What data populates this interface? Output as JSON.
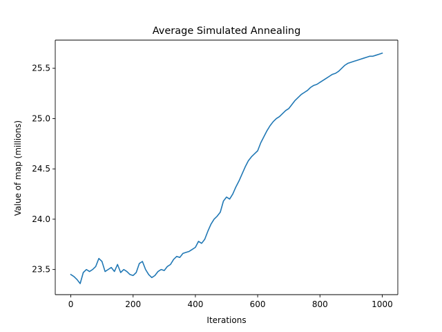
{
  "chart_data": {
    "type": "line",
    "title": "Average Simulated Annealing",
    "xlabel": "Iterations",
    "ylabel": "Value of map (millions)",
    "xlim": [
      -50,
      1050
    ],
    "ylim": [
      23.25,
      25.78
    ],
    "xticks": [
      0,
      200,
      400,
      600,
      800,
      1000
    ],
    "yticks": [
      23.5,
      24.0,
      24.5,
      25.0,
      25.5
    ],
    "xtick_labels": [
      "0",
      "200",
      "400",
      "600",
      "800",
      "1000"
    ],
    "ytick_labels": [
      "23.5",
      "24.0",
      "24.5",
      "25.0",
      "25.5"
    ],
    "grid": false,
    "legend": "none",
    "series": [
      {
        "color": "#1f77b4",
        "x": [
          0,
          10,
          20,
          30,
          40,
          50,
          60,
          70,
          80,
          90,
          100,
          110,
          120,
          130,
          140,
          150,
          160,
          170,
          180,
          190,
          200,
          210,
          220,
          230,
          240,
          250,
          260,
          270,
          280,
          290,
          300,
          310,
          320,
          330,
          340,
          350,
          360,
          370,
          380,
          390,
          400,
          410,
          420,
          430,
          440,
          450,
          460,
          470,
          480,
          490,
          500,
          510,
          520,
          530,
          540,
          550,
          560,
          570,
          580,
          590,
          600,
          610,
          620,
          630,
          640,
          650,
          660,
          670,
          680,
          690,
          700,
          710,
          720,
          730,
          740,
          750,
          760,
          770,
          780,
          790,
          800,
          810,
          820,
          830,
          840,
          850,
          860,
          870,
          880,
          890,
          900,
          910,
          920,
          930,
          940,
          950,
          960,
          970,
          980,
          990,
          1000
        ],
        "y": [
          23.45,
          23.43,
          23.4,
          23.36,
          23.47,
          23.5,
          23.48,
          23.5,
          23.53,
          23.61,
          23.58,
          23.48,
          23.5,
          23.52,
          23.48,
          23.55,
          23.47,
          23.5,
          23.48,
          23.45,
          23.44,
          23.47,
          23.56,
          23.58,
          23.5,
          23.45,
          23.42,
          23.44,
          23.48,
          23.5,
          23.49,
          23.53,
          23.55,
          23.6,
          23.63,
          23.62,
          23.66,
          23.67,
          23.68,
          23.7,
          23.72,
          23.78,
          23.76,
          23.8,
          23.88,
          23.95,
          24.0,
          24.03,
          24.07,
          24.18,
          24.22,
          24.2,
          24.25,
          24.32,
          24.38,
          24.45,
          24.52,
          24.58,
          24.62,
          24.65,
          24.68,
          24.76,
          24.82,
          24.88,
          24.93,
          24.97,
          25.0,
          25.02,
          25.05,
          25.08,
          25.1,
          25.14,
          25.18,
          25.21,
          25.24,
          25.26,
          25.28,
          25.31,
          25.33,
          25.34,
          25.36,
          25.38,
          25.4,
          25.42,
          25.44,
          25.45,
          25.47,
          25.5,
          25.53,
          25.55,
          25.56,
          25.57,
          25.58,
          25.59,
          25.6,
          25.61,
          25.62,
          25.62,
          25.63,
          25.64,
          25.65
        ]
      }
    ]
  }
}
